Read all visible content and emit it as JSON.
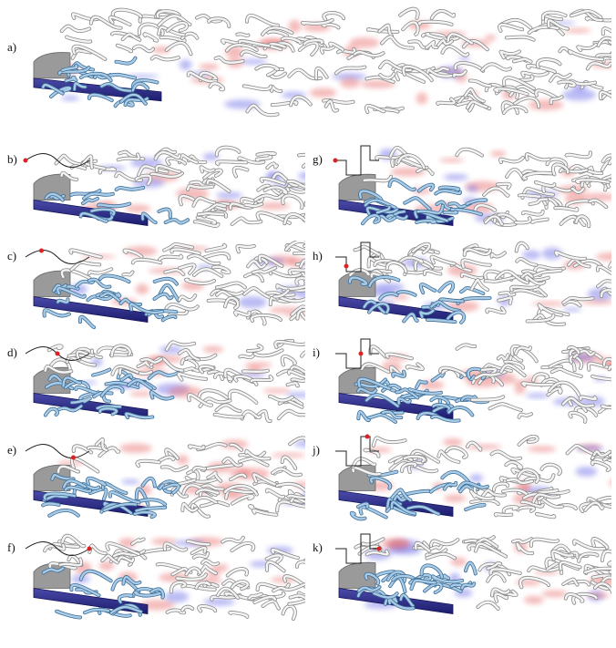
{
  "panels": [
    {
      "label": "a)"
    },
    {
      "label": "b)"
    },
    {
      "label": "c)"
    },
    {
      "label": "d)"
    },
    {
      "label": "e)"
    },
    {
      "label": "f)"
    },
    {
      "label": "g)"
    },
    {
      "label": "h)"
    },
    {
      "label": "i)"
    },
    {
      "label": "j)"
    },
    {
      "label": "k)"
    }
  ]
}
